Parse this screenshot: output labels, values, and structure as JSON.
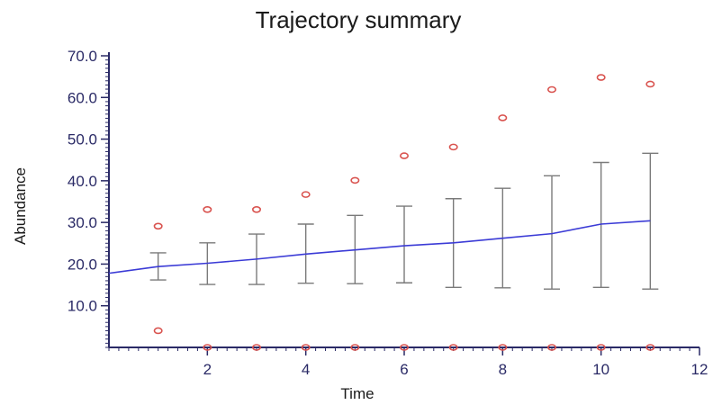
{
  "chart_data": {
    "type": "line",
    "title": "Trajectory summary",
    "xlabel": "Time",
    "ylabel": "Abundance",
    "xlim": [
      0,
      12
    ],
    "ylim": [
      0,
      70
    ],
    "x_ticks": [
      2,
      4,
      6,
      8,
      10,
      12
    ],
    "x_tick_labels": [
      "2",
      "4",
      "6",
      "8",
      "10",
      "12"
    ],
    "y_ticks": [
      10,
      20,
      30,
      40,
      50,
      60,
      70
    ],
    "y_tick_labels": [
      "10.0",
      "20.0",
      "30.0",
      "40.0",
      "50.0",
      "60.0",
      "70.0"
    ],
    "grid": false,
    "series": [
      {
        "kind": "mean-line",
        "color": "#3b3bd6",
        "x": [
          0,
          1,
          2,
          3,
          4,
          5,
          6,
          7,
          8,
          9,
          10,
          11
        ],
        "y": [
          17.8,
          19.4,
          20.2,
          21.2,
          22.4,
          23.4,
          24.4,
          25.1,
          26.2,
          27.3,
          29.6,
          30.4
        ]
      },
      {
        "kind": "error-bars",
        "color": "#7a7a7a",
        "x": [
          1,
          2,
          3,
          4,
          5,
          6,
          7,
          8,
          9,
          10,
          11
        ],
        "low": [
          16.2,
          15.1,
          15.1,
          15.4,
          15.3,
          15.5,
          14.4,
          14.3,
          14.0,
          14.4,
          14.0
        ],
        "high": [
          22.7,
          25.1,
          27.2,
          29.6,
          31.7,
          33.9,
          35.7,
          38.2,
          41.2,
          44.4,
          46.6
        ]
      },
      {
        "kind": "max-markers",
        "color": "#d9534f",
        "x": [
          1,
          2,
          3,
          4,
          5,
          6,
          7,
          8,
          9,
          10,
          11
        ],
        "y": [
          29.1,
          33.1,
          33.1,
          36.7,
          40.1,
          46.0,
          48.1,
          55.1,
          61.9,
          64.8,
          63.2
        ]
      },
      {
        "kind": "min-markers",
        "color": "#d9534f",
        "x": [
          1,
          2,
          3,
          4,
          5,
          6,
          7,
          8,
          9,
          10,
          11
        ],
        "y": [
          4.0,
          0,
          0,
          0,
          0,
          0,
          0,
          0,
          0,
          0,
          0
        ]
      }
    ]
  }
}
